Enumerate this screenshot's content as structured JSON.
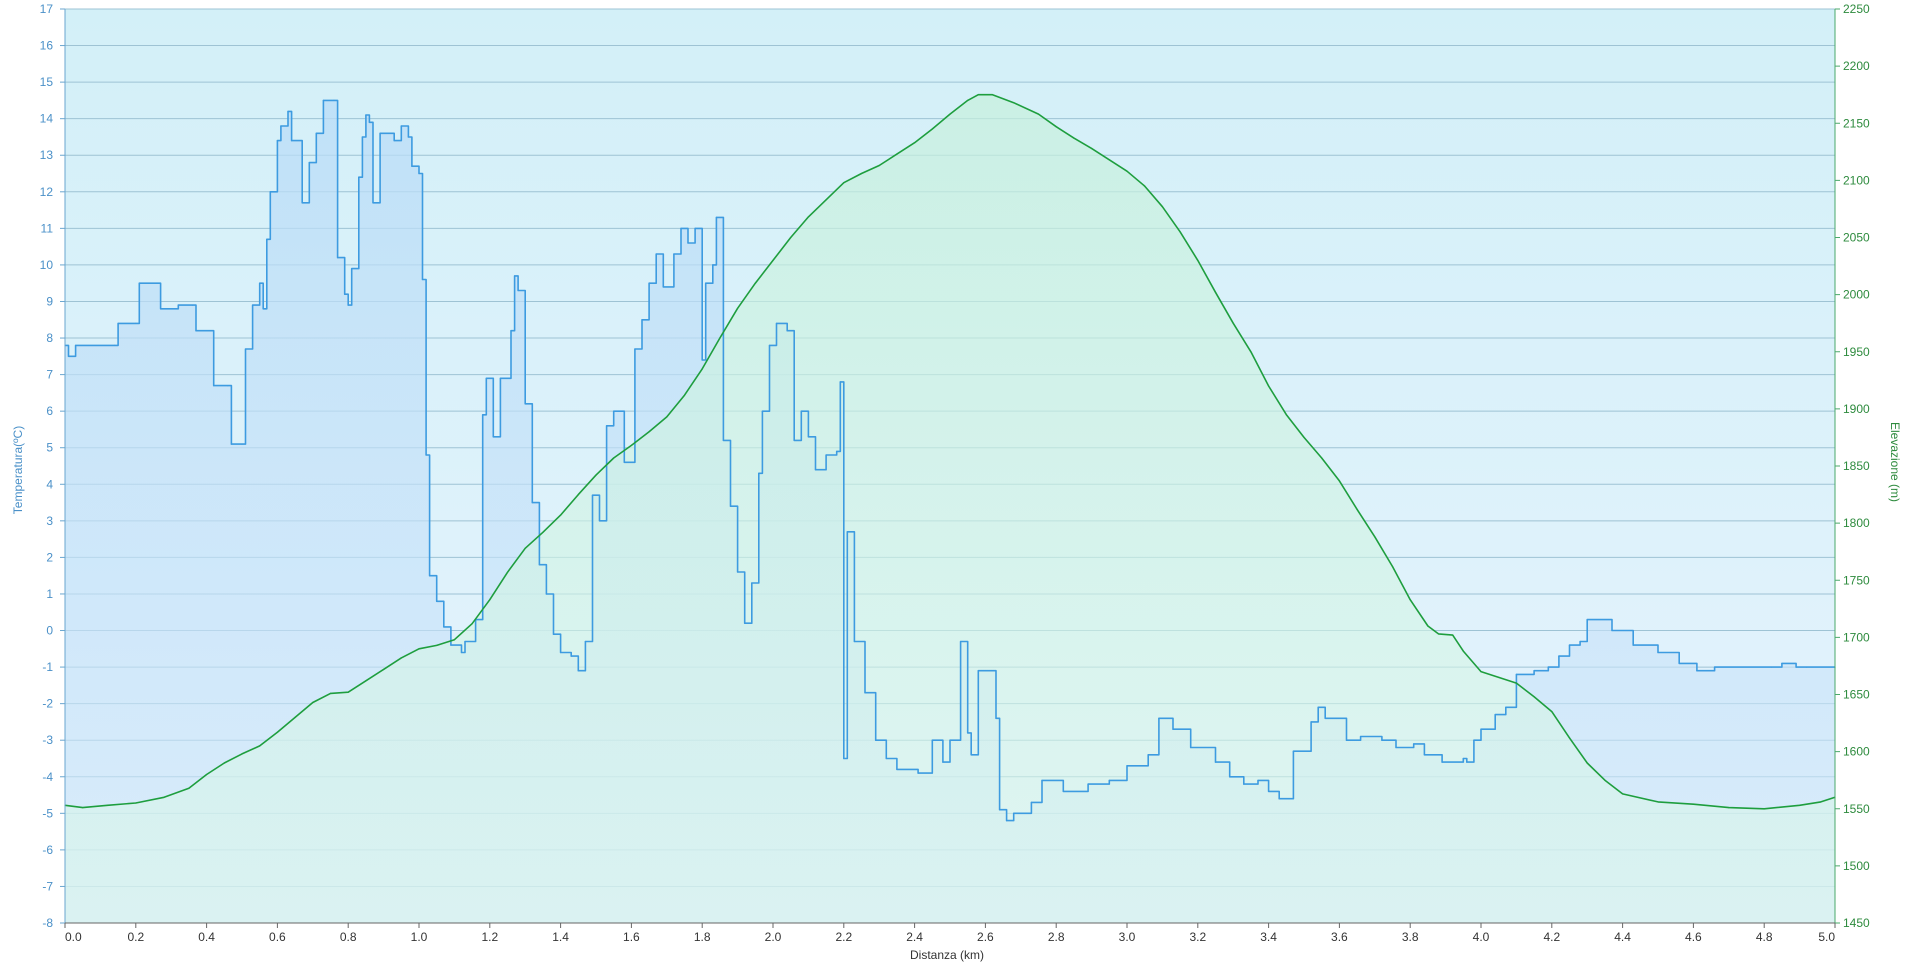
{
  "chart_data": {
    "type": "line",
    "title": "",
    "xlabel": "Distanza  (km)",
    "ylabel_left": "Temperatura(ºC)",
    "ylabel_right": "Elevazione (m)",
    "xlim": [
      0.0,
      5.0
    ],
    "ylim_left": [
      -8,
      17
    ],
    "ylim_right": [
      1450,
      2250
    ],
    "x_ticks": [
      "0.0",
      "0.2",
      "0.4",
      "0.6",
      "0.8",
      "1.0",
      "1.2",
      "1.4",
      "1.6",
      "1.8",
      "2.0",
      "2.2",
      "2.4",
      "2.6",
      "2.8",
      "3.0",
      "3.2",
      "3.4",
      "3.6",
      "3.8",
      "4.0",
      "4.2",
      "4.4",
      "4.6",
      "4.8",
      "5.0"
    ],
    "y_left_ticks": [
      "17",
      "16",
      "15",
      "14",
      "13",
      "12",
      "11",
      "10",
      "9",
      "8",
      "7",
      "6",
      "5",
      "4",
      "3",
      "2",
      "1",
      "0",
      "-1",
      "-2",
      "-3",
      "-4",
      "-5",
      "-6",
      "-7",
      "-8"
    ],
    "y_right_ticks": [
      "2250",
      "2200",
      "2150",
      "2100",
      "2050",
      "2000",
      "1950",
      "1900",
      "1850",
      "1800",
      "1750",
      "1700",
      "1650",
      "1600",
      "1550",
      "1500",
      "1450"
    ],
    "grid": true,
    "series": [
      {
        "name": "Temperatura",
        "axis": "left",
        "color": "#3d9be0",
        "step": true,
        "points": [
          [
            0.0,
            7.8
          ],
          [
            0.01,
            7.5
          ],
          [
            0.03,
            7.8
          ],
          [
            0.14,
            7.8
          ],
          [
            0.15,
            8.4
          ],
          [
            0.2,
            8.4
          ],
          [
            0.21,
            9.5
          ],
          [
            0.26,
            9.5
          ],
          [
            0.27,
            8.8
          ],
          [
            0.31,
            8.8
          ],
          [
            0.32,
            8.9
          ],
          [
            0.36,
            8.9
          ],
          [
            0.37,
            8.2
          ],
          [
            0.41,
            8.2
          ],
          [
            0.42,
            6.7
          ],
          [
            0.46,
            6.7
          ],
          [
            0.47,
            5.1
          ],
          [
            0.5,
            5.1
          ],
          [
            0.51,
            7.7
          ],
          [
            0.53,
            8.9
          ],
          [
            0.55,
            9.5
          ],
          [
            0.56,
            8.8
          ],
          [
            0.57,
            10.7
          ],
          [
            0.58,
            12.0
          ],
          [
            0.6,
            13.4
          ],
          [
            0.61,
            13.8
          ],
          [
            0.63,
            14.2
          ],
          [
            0.64,
            13.4
          ],
          [
            0.67,
            11.7
          ],
          [
            0.69,
            12.8
          ],
          [
            0.71,
            13.6
          ],
          [
            0.73,
            14.5
          ],
          [
            0.76,
            14.5
          ],
          [
            0.77,
            10.2
          ],
          [
            0.79,
            9.2
          ],
          [
            0.8,
            8.9
          ],
          [
            0.81,
            9.9
          ],
          [
            0.83,
            12.4
          ],
          [
            0.84,
            13.5
          ],
          [
            0.85,
            14.1
          ],
          [
            0.86,
            13.9
          ],
          [
            0.87,
            11.7
          ],
          [
            0.89,
            13.6
          ],
          [
            0.93,
            13.4
          ],
          [
            0.95,
            13.8
          ],
          [
            0.97,
            13.5
          ],
          [
            0.98,
            12.7
          ],
          [
            1.0,
            12.5
          ],
          [
            1.01,
            9.6
          ],
          [
            1.02,
            4.8
          ],
          [
            1.03,
            1.5
          ],
          [
            1.05,
            0.8
          ],
          [
            1.07,
            0.1
          ],
          [
            1.09,
            -0.4
          ],
          [
            1.12,
            -0.6
          ],
          [
            1.13,
            -0.3
          ],
          [
            1.16,
            0.3
          ],
          [
            1.18,
            5.9
          ],
          [
            1.19,
            6.9
          ],
          [
            1.21,
            5.3
          ],
          [
            1.23,
            6.9
          ],
          [
            1.26,
            8.2
          ],
          [
            1.27,
            9.7
          ],
          [
            1.28,
            9.3
          ],
          [
            1.3,
            6.2
          ],
          [
            1.32,
            3.5
          ],
          [
            1.34,
            1.8
          ],
          [
            1.36,
            1.0
          ],
          [
            1.38,
            -0.1
          ],
          [
            1.4,
            -0.6
          ],
          [
            1.43,
            -0.7
          ],
          [
            1.45,
            -1.1
          ],
          [
            1.47,
            -0.3
          ],
          [
            1.49,
            3.7
          ],
          [
            1.51,
            3.0
          ],
          [
            1.53,
            5.6
          ],
          [
            1.55,
            6.0
          ],
          [
            1.58,
            4.6
          ],
          [
            1.61,
            7.7
          ],
          [
            1.63,
            8.5
          ],
          [
            1.65,
            9.5
          ],
          [
            1.67,
            10.3
          ],
          [
            1.69,
            9.4
          ],
          [
            1.72,
            10.3
          ],
          [
            1.74,
            11.0
          ],
          [
            1.76,
            10.6
          ],
          [
            1.78,
            11.0
          ],
          [
            1.8,
            7.4
          ],
          [
            1.81,
            9.5
          ],
          [
            1.83,
            10.0
          ],
          [
            1.84,
            11.3
          ],
          [
            1.86,
            5.2
          ],
          [
            1.88,
            3.4
          ],
          [
            1.9,
            1.6
          ],
          [
            1.92,
            0.2
          ],
          [
            1.94,
            1.3
          ],
          [
            1.96,
            4.3
          ],
          [
            1.97,
            6.0
          ],
          [
            1.99,
            7.8
          ],
          [
            2.01,
            8.4
          ],
          [
            2.04,
            8.2
          ],
          [
            2.06,
            5.2
          ],
          [
            2.08,
            6.0
          ],
          [
            2.1,
            5.3
          ],
          [
            2.12,
            4.4
          ],
          [
            2.15,
            4.8
          ],
          [
            2.18,
            4.9
          ],
          [
            2.19,
            6.8
          ],
          [
            2.2,
            -3.5
          ],
          [
            2.21,
            2.7
          ],
          [
            2.23,
            -0.3
          ],
          [
            2.26,
            -1.7
          ],
          [
            2.29,
            -3.0
          ],
          [
            2.32,
            -3.5
          ],
          [
            2.35,
            -3.8
          ],
          [
            2.41,
            -3.9
          ],
          [
            2.45,
            -3.0
          ],
          [
            2.48,
            -3.6
          ],
          [
            2.5,
            -3.0
          ],
          [
            2.53,
            -0.3
          ],
          [
            2.55,
            -2.8
          ],
          [
            2.56,
            -3.4
          ],
          [
            2.58,
            -1.1
          ],
          [
            2.6,
            -1.1
          ],
          [
            2.62,
            -1.1
          ],
          [
            2.63,
            -2.4
          ],
          [
            2.64,
            -4.9
          ],
          [
            2.66,
            -5.2
          ],
          [
            2.68,
            -5.0
          ],
          [
            2.73,
            -4.7
          ],
          [
            2.76,
            -4.1
          ],
          [
            2.82,
            -4.4
          ],
          [
            2.89,
            -4.2
          ],
          [
            2.95,
            -4.1
          ],
          [
            3.0,
            -3.7
          ],
          [
            3.06,
            -3.4
          ],
          [
            3.09,
            -2.4
          ],
          [
            3.13,
            -2.7
          ],
          [
            3.18,
            -3.2
          ],
          [
            3.25,
            -3.6
          ],
          [
            3.29,
            -4.0
          ],
          [
            3.33,
            -4.2
          ],
          [
            3.37,
            -4.1
          ],
          [
            3.4,
            -4.4
          ],
          [
            3.43,
            -4.6
          ],
          [
            3.47,
            -3.3
          ],
          [
            3.52,
            -2.5
          ],
          [
            3.54,
            -2.1
          ],
          [
            3.56,
            -2.4
          ],
          [
            3.62,
            -3.0
          ],
          [
            3.66,
            -2.9
          ],
          [
            3.72,
            -3.0
          ],
          [
            3.76,
            -3.2
          ],
          [
            3.81,
            -3.1
          ],
          [
            3.84,
            -3.4
          ],
          [
            3.89,
            -3.6
          ],
          [
            3.95,
            -3.5
          ],
          [
            3.96,
            -3.6
          ],
          [
            3.98,
            -3.0
          ],
          [
            4.0,
            -2.7
          ],
          [
            4.04,
            -2.3
          ],
          [
            4.07,
            -2.1
          ],
          [
            4.1,
            -1.2
          ],
          [
            4.15,
            -1.1
          ],
          [
            4.19,
            -1.0
          ],
          [
            4.22,
            -0.7
          ],
          [
            4.25,
            -0.4
          ],
          [
            4.28,
            -0.3
          ],
          [
            4.3,
            0.3
          ],
          [
            4.37,
            0.0
          ],
          [
            4.43,
            -0.4
          ],
          [
            4.5,
            -0.6
          ],
          [
            4.56,
            -0.9
          ],
          [
            4.61,
            -1.1
          ],
          [
            4.66,
            -1.0
          ],
          [
            4.82,
            -1.0
          ],
          [
            4.85,
            -0.9
          ],
          [
            4.89,
            -1.0
          ],
          [
            4.92,
            -1.0
          ],
          [
            5.0,
            -1.0
          ]
        ]
      },
      {
        "name": "Elevazione",
        "axis": "right",
        "color": "#1e9e3e",
        "step": false,
        "points": [
          [
            0.0,
            1553
          ],
          [
            0.05,
            1551
          ],
          [
            0.12,
            1553
          ],
          [
            0.2,
            1555
          ],
          [
            0.28,
            1560
          ],
          [
            0.35,
            1568
          ],
          [
            0.4,
            1580
          ],
          [
            0.45,
            1590
          ],
          [
            0.5,
            1598
          ],
          [
            0.55,
            1605
          ],
          [
            0.6,
            1617
          ],
          [
            0.65,
            1630
          ],
          [
            0.7,
            1643
          ],
          [
            0.75,
            1651
          ],
          [
            0.8,
            1652
          ],
          [
            0.85,
            1662
          ],
          [
            0.9,
            1672
          ],
          [
            0.95,
            1682
          ],
          [
            1.0,
            1690
          ],
          [
            1.05,
            1693
          ],
          [
            1.1,
            1698
          ],
          [
            1.15,
            1712
          ],
          [
            1.2,
            1733
          ],
          [
            1.25,
            1757
          ],
          [
            1.3,
            1778
          ],
          [
            1.35,
            1792
          ],
          [
            1.4,
            1807
          ],
          [
            1.45,
            1825
          ],
          [
            1.5,
            1842
          ],
          [
            1.55,
            1857
          ],
          [
            1.6,
            1868
          ],
          [
            1.65,
            1880
          ],
          [
            1.7,
            1893
          ],
          [
            1.75,
            1912
          ],
          [
            1.8,
            1935
          ],
          [
            1.85,
            1962
          ],
          [
            1.9,
            1988
          ],
          [
            1.95,
            2010
          ],
          [
            2.0,
            2030
          ],
          [
            2.05,
            2050
          ],
          [
            2.1,
            2068
          ],
          [
            2.15,
            2083
          ],
          [
            2.2,
            2098
          ],
          [
            2.25,
            2106
          ],
          [
            2.3,
            2113
          ],
          [
            2.35,
            2123
          ],
          [
            2.4,
            2133
          ],
          [
            2.45,
            2145
          ],
          [
            2.5,
            2158
          ],
          [
            2.55,
            2170
          ],
          [
            2.58,
            2175
          ],
          [
            2.62,
            2175
          ],
          [
            2.68,
            2168
          ],
          [
            2.75,
            2158
          ],
          [
            2.8,
            2147
          ],
          [
            2.85,
            2137
          ],
          [
            2.9,
            2128
          ],
          [
            2.95,
            2118
          ],
          [
            3.0,
            2108
          ],
          [
            3.05,
            2095
          ],
          [
            3.1,
            2077
          ],
          [
            3.15,
            2055
          ],
          [
            3.2,
            2030
          ],
          [
            3.25,
            2002
          ],
          [
            3.3,
            1975
          ],
          [
            3.35,
            1950
          ],
          [
            3.4,
            1920
          ],
          [
            3.45,
            1895
          ],
          [
            3.5,
            1875
          ],
          [
            3.55,
            1857
          ],
          [
            3.6,
            1837
          ],
          [
            3.65,
            1812
          ],
          [
            3.7,
            1788
          ],
          [
            3.75,
            1762
          ],
          [
            3.8,
            1733
          ],
          [
            3.85,
            1710
          ],
          [
            3.88,
            1703
          ],
          [
            3.92,
            1702
          ],
          [
            3.95,
            1688
          ],
          [
            4.0,
            1670
          ],
          [
            4.05,
            1665
          ],
          [
            4.1,
            1660
          ],
          [
            4.15,
            1648
          ],
          [
            4.2,
            1635
          ],
          [
            4.25,
            1612
          ],
          [
            4.3,
            1590
          ],
          [
            4.35,
            1575
          ],
          [
            4.4,
            1563
          ],
          [
            4.5,
            1556
          ],
          [
            4.6,
            1554
          ],
          [
            4.7,
            1551
          ],
          [
            4.8,
            1550
          ],
          [
            4.9,
            1553
          ],
          [
            4.96,
            1556
          ],
          [
            5.0,
            1560
          ]
        ]
      }
    ]
  },
  "colors": {
    "temperature": "#3d9be0",
    "elevation": "#1e9e3e",
    "left_axis_text": "#4a90c8",
    "right_axis_text": "#2e8b3e",
    "grid": "#9ec3d4",
    "background_top": "#d3f0f8",
    "background_bottom": "#e6f3fd"
  }
}
